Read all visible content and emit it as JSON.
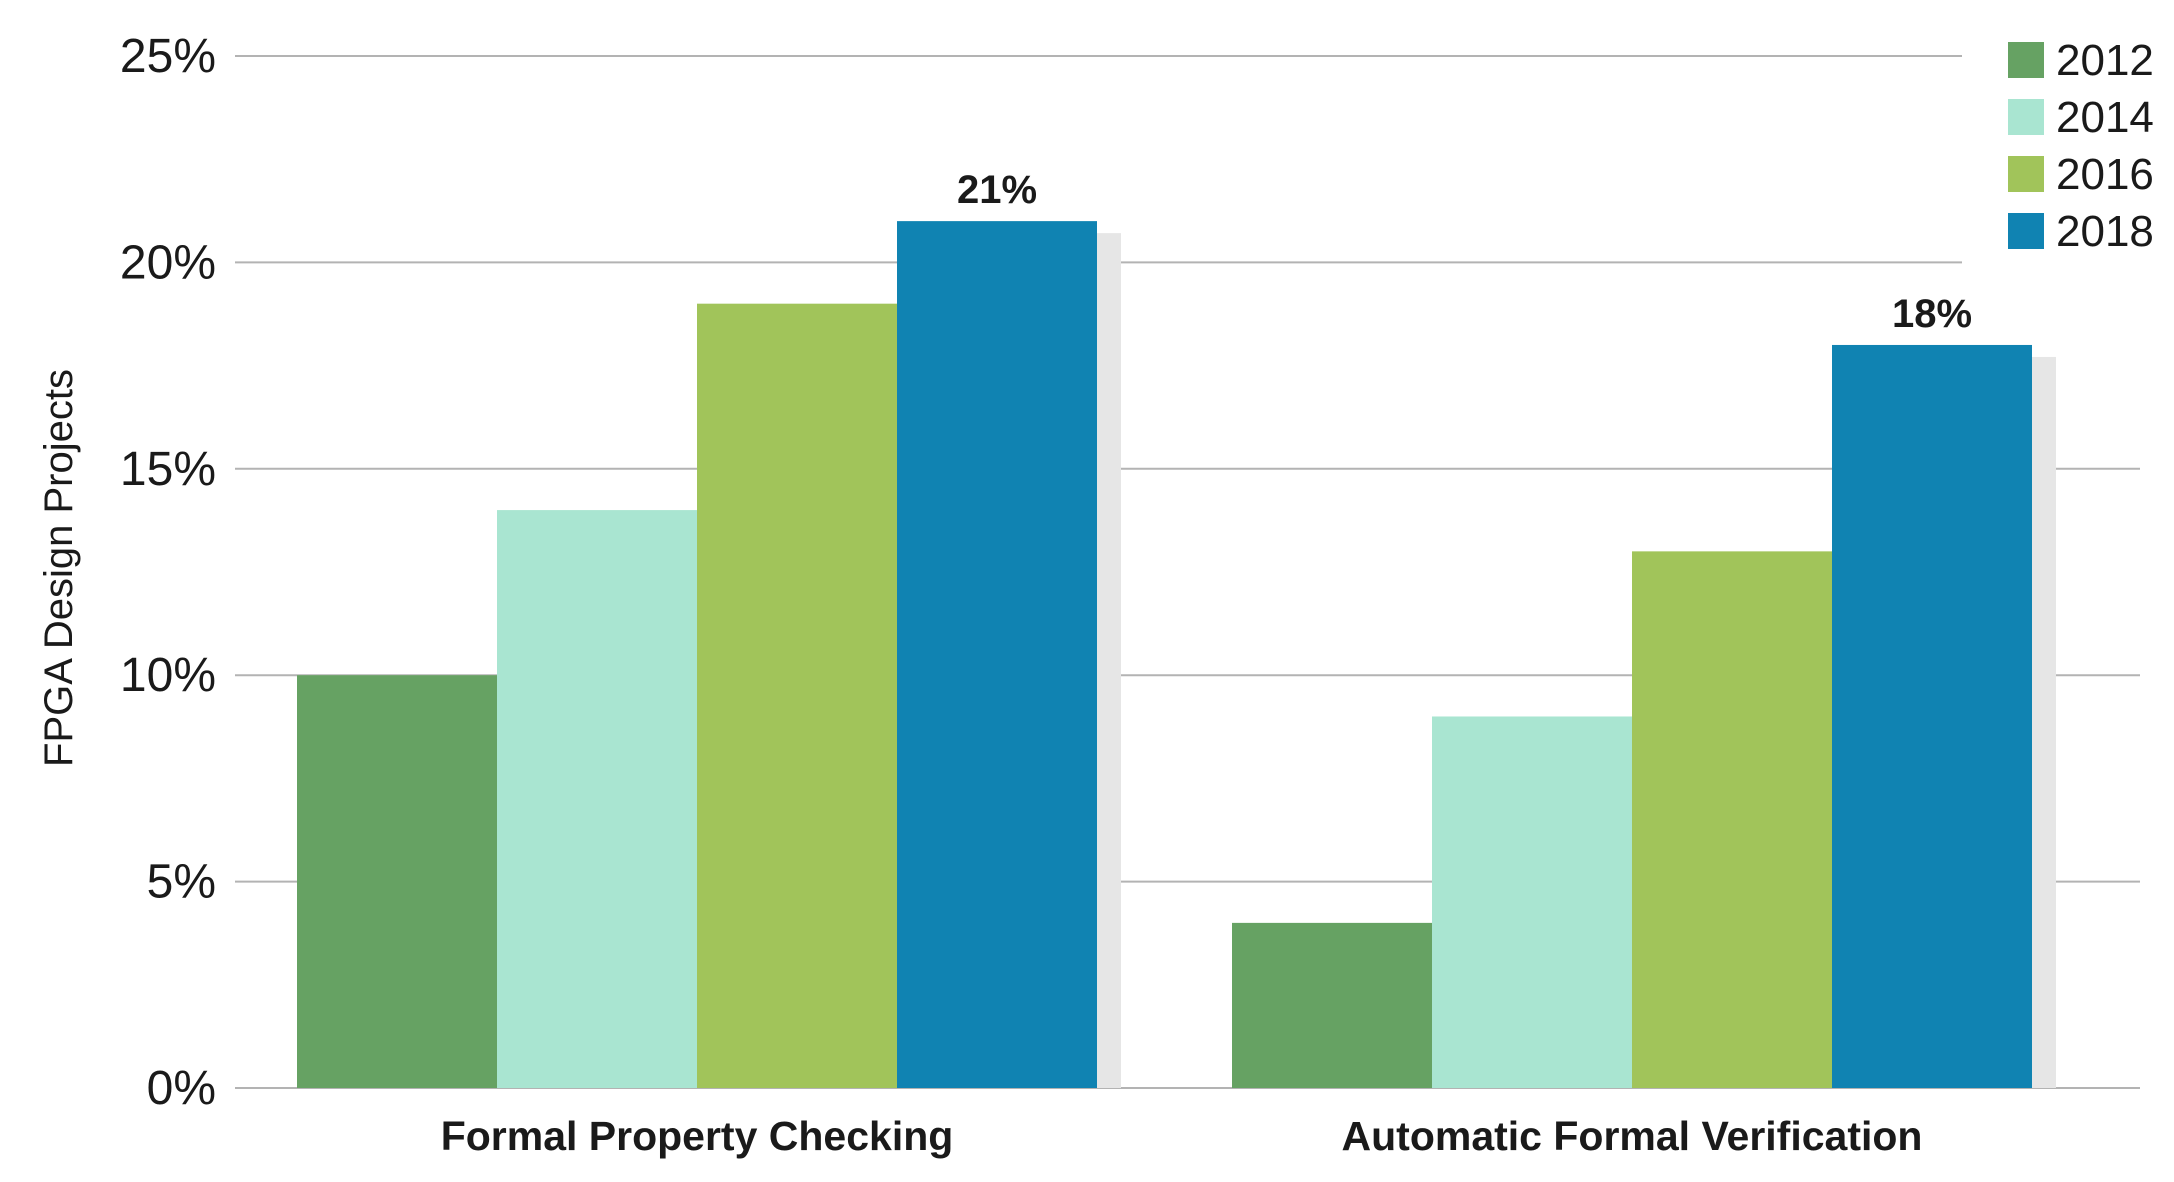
{
  "chart_data": {
    "type": "bar",
    "title": "",
    "xlabel": "",
    "ylabel": "FPGA Design Projects",
    "ylim": [
      0,
      25
    ],
    "yticks": [
      0,
      5,
      10,
      15,
      20,
      25
    ],
    "ytick_labels": [
      "0%",
      "5%",
      "10%",
      "15%",
      "20%",
      "25%"
    ],
    "categories": [
      "Formal Property Checking",
      "Automatic Formal Verification"
    ],
    "series": [
      {
        "name": "2012",
        "color": "#66a263",
        "values": [
          10,
          4
        ]
      },
      {
        "name": "2014",
        "color": "#a9e5d1",
        "values": [
          14,
          9
        ]
      },
      {
        "name": "2016",
        "color": "#a1c45a",
        "values": [
          19,
          13
        ]
      },
      {
        "name": "2018",
        "color": "#1083b2",
        "values": [
          21,
          18
        ]
      }
    ],
    "data_labels": [
      {
        "series": "2018",
        "category": "Formal Property Checking",
        "text": "21%"
      },
      {
        "series": "2018",
        "category": "Automatic Formal Verification",
        "text": "18%"
      }
    ],
    "grid": true,
    "legend_position": "top-right"
  }
}
